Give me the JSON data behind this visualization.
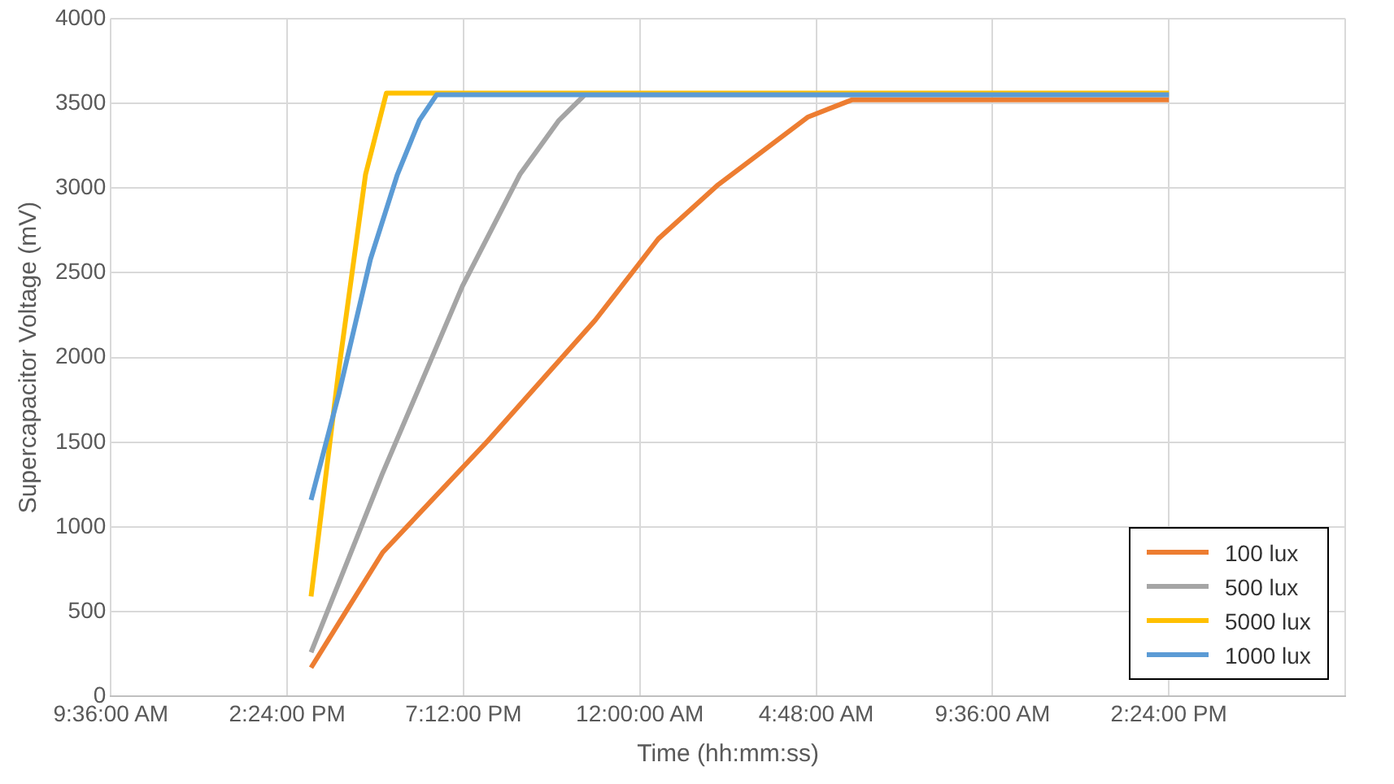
{
  "chart_data": {
    "type": "line",
    "xlabel": "Time (hh:mm:ss)",
    "ylabel": "Supercapacitor Voltage (mV)",
    "xlim": [
      "2000-01-01T09:36",
      "2000-01-02T19:12"
    ],
    "xticks": [
      {
        "value": "2000-01-01T09:36",
        "label": "9:36:00 AM"
      },
      {
        "value": "2000-01-01T14:24",
        "label": "2:24:00 PM"
      },
      {
        "value": "2000-01-01T19:12",
        "label": "7:12:00 PM"
      },
      {
        "value": "2000-01-02T00:00",
        "label": "12:00:00 AM"
      },
      {
        "value": "2000-01-02T04:48",
        "label": "4:48:00 AM"
      },
      {
        "value": "2000-01-02T09:36",
        "label": "9:36:00 AM"
      },
      {
        "value": "2000-01-02T14:24",
        "label": "2:24:00 PM"
      },
      {
        "value": "2000-01-02T19:12",
        "label": null
      }
    ],
    "ylim": [
      0,
      4000
    ],
    "yticks": [
      0,
      500,
      1000,
      1500,
      2000,
      2500,
      3000,
      3500,
      4000
    ],
    "grid": true,
    "legend": "bottom right",
    "marker": "none",
    "line_style": "solid",
    "series": [
      {
        "name": "100 lux",
        "color": "#ed7d31",
        "x": [
          "2000-01-01T15:03",
          "2000-01-01T17:00",
          "2000-01-01T19:52",
          "2000-01-01T22:47",
          "2000-01-01T23:58",
          "2000-01-02T00:30",
          "2000-01-02T02:08",
          "2000-01-02T04:35",
          "2000-01-02T05:46",
          "2000-01-02T14:24"
        ],
        "values": [
          170,
          850,
          1510,
          2220,
          2550,
          2700,
          3020,
          3420,
          3520,
          3520
        ]
      },
      {
        "name": "500 lux",
        "color": "#a5a5a5",
        "x": [
          "2000-01-01T15:03",
          "2000-01-01T16:59",
          "2000-01-01T19:10",
          "2000-01-01T20:44",
          "2000-01-01T21:48",
          "2000-01-01T22:30",
          "2000-01-02T14:24"
        ],
        "values": [
          260,
          1310,
          2420,
          3080,
          3400,
          3550,
          3550
        ]
      },
      {
        "name": "5000 lux",
        "color": "#ffc000",
        "x": [
          "2000-01-01T15:03",
          "2000-01-01T15:48",
          "2000-01-01T16:32",
          "2000-01-01T17:06",
          "2000-01-02T14:24"
        ],
        "values": [
          590,
          1920,
          3080,
          3560,
          3560
        ]
      },
      {
        "name": "1000 lux",
        "color": "#5b9bd5",
        "x": [
          "2000-01-01T15:03",
          "2000-01-01T15:48",
          "2000-01-01T16:40",
          "2000-01-01T17:24",
          "2000-01-01T18:00",
          "2000-01-01T18:28",
          "2000-01-02T14:24"
        ],
        "values": [
          1160,
          1780,
          2580,
          3080,
          3400,
          3550,
          3550
        ]
      }
    ]
  }
}
